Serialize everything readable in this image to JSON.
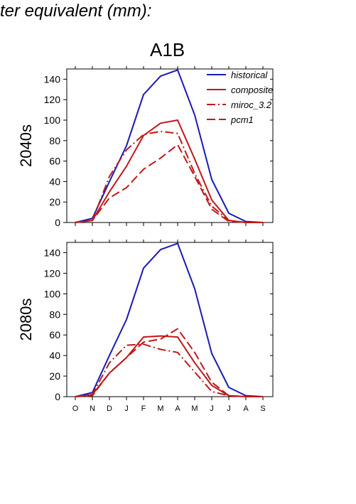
{
  "header": {
    "title": "ter equivalent (mm):",
    "scenario": "A1B"
  },
  "chart_data": [
    {
      "type": "line",
      "row_label": "2040s",
      "x": [
        "O",
        "N",
        "D",
        "J",
        "F",
        "M",
        "A",
        "M",
        "J",
        "J",
        "A",
        "S"
      ],
      "ylim": [
        0,
        150
      ],
      "yticks": [
        0,
        20,
        40,
        60,
        80,
        100,
        120,
        140
      ],
      "legend": {
        "position": "top-right"
      },
      "series": [
        {
          "name": "historical",
          "color": "#1a1ab8",
          "style": "solid",
          "values": [
            0,
            4,
            40,
            75,
            125,
            143,
            149,
            105,
            42,
            9,
            1,
            0
          ]
        },
        {
          "name": "composite",
          "color": "#c01818",
          "style": "solid",
          "values": [
            0,
            2,
            30,
            55,
            85,
            97,
            100,
            62,
            22,
            2,
            0,
            0
          ]
        },
        {
          "name": "miroc_3.2",
          "color": "#c01818",
          "style": "dashdot",
          "values": [
            0,
            2,
            45,
            71,
            86,
            89,
            87,
            48,
            16,
            2,
            0,
            0
          ]
        },
        {
          "name": "pcm1",
          "color": "#c01818",
          "style": "dashed",
          "values": [
            0,
            2,
            24,
            34,
            52,
            63,
            76,
            45,
            13,
            1,
            0,
            0
          ]
        }
      ]
    },
    {
      "type": "line",
      "row_label": "2080s",
      "x": [
        "O",
        "N",
        "D",
        "J",
        "F",
        "M",
        "A",
        "M",
        "J",
        "J",
        "A",
        "S"
      ],
      "ylim": [
        0,
        150
      ],
      "yticks": [
        0,
        20,
        40,
        60,
        80,
        100,
        120,
        140
      ],
      "series": [
        {
          "name": "historical",
          "color": "#1a1ab8",
          "style": "solid",
          "values": [
            0,
            4,
            40,
            75,
            125,
            143,
            149,
            105,
            42,
            9,
            1,
            0
          ]
        },
        {
          "name": "composite",
          "color": "#c01818",
          "style": "solid",
          "values": [
            0,
            2,
            23,
            38,
            58,
            59,
            58,
            33,
            11,
            1,
            0,
            0
          ]
        },
        {
          "name": "miroc_3.2",
          "color": "#c01818",
          "style": "dashdot",
          "values": [
            0,
            2,
            33,
            50,
            51,
            46,
            43,
            24,
            5,
            1,
            0,
            0
          ]
        },
        {
          "name": "pcm1",
          "color": "#c01818",
          "style": "dashed",
          "values": [
            0,
            1,
            23,
            38,
            53,
            56,
            66,
            43,
            14,
            1,
            0,
            0
          ]
        }
      ]
    }
  ]
}
